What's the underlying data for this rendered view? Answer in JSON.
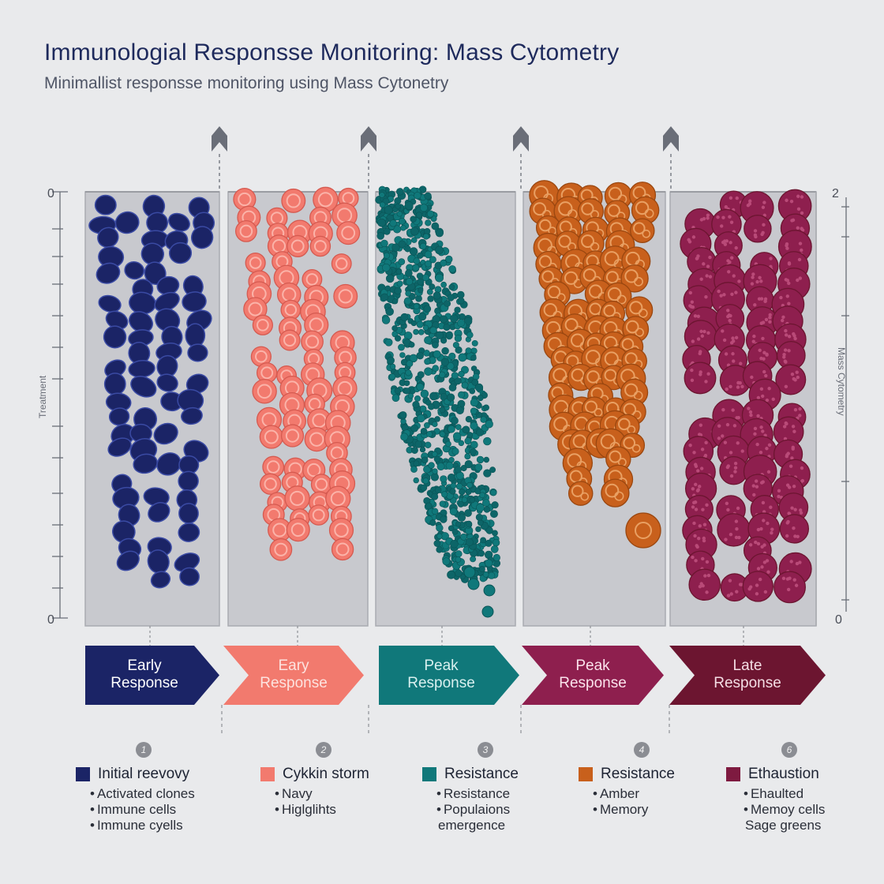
{
  "title": "Immunologial Responsse Monitoring: Mass Cytometry",
  "subtitle": "Minimallist responsse monitoring using Mass Cytonetry",
  "axis": {
    "left_top": "0",
    "left_bottom": "0",
    "right_top": "2",
    "right_bottom": "0",
    "left_label": "Treatment",
    "right_label": "Mass Cytometry"
  },
  "colors": {
    "background": "#e9eaec",
    "panel": "#c8c9ce",
    "navy": "#1b2466",
    "coral": "#f27a6e",
    "teal": "#10787a",
    "amber": "#c8601c",
    "plum": "#8e1f4e",
    "wine": "#6c1530"
  },
  "stages": [
    {
      "label": "Early\nResponse",
      "color": "#1b2466",
      "text_color": "#ffffff"
    },
    {
      "label": "Eary\nResponse",
      "color": "#f27a6e",
      "text_color": "#fde3df"
    },
    {
      "label": "Peak\nResponse",
      "color": "#10787a",
      "text_color": "#d8f0ef"
    },
    {
      "label": "Peak\nResponse",
      "color": "#8e1f4e",
      "text_color": "#fbe3ec"
    },
    {
      "label": "Late\nResponse",
      "color": "#6c1530",
      "text_color": "#f4dde4"
    }
  ],
  "legend": [
    {
      "number": "1",
      "title": "Initial reevovy",
      "swatch": "#1b2466",
      "items": [
        "Activated clones",
        "Immune cells",
        "Immune cyells"
      ]
    },
    {
      "number": "2",
      "title": "Cykkin storm",
      "swatch": "#f27a6e",
      "items": [
        "Navy",
        "Higlglihts"
      ]
    },
    {
      "number": "3",
      "title": "Resistance",
      "swatch": "#10787a",
      "items": [
        "Resistance",
        "Populaions",
        "emergence"
      ]
    },
    {
      "number": "4",
      "title": "Resistance",
      "swatch": "#c8601c",
      "items": [
        "Amber",
        "Memory"
      ]
    },
    {
      "number": "6",
      "title": "Ethaustion",
      "swatch": "#7e1a40",
      "items": [
        "Ehaulted",
        "Memoy cells",
        "Sage greens"
      ]
    }
  ]
}
